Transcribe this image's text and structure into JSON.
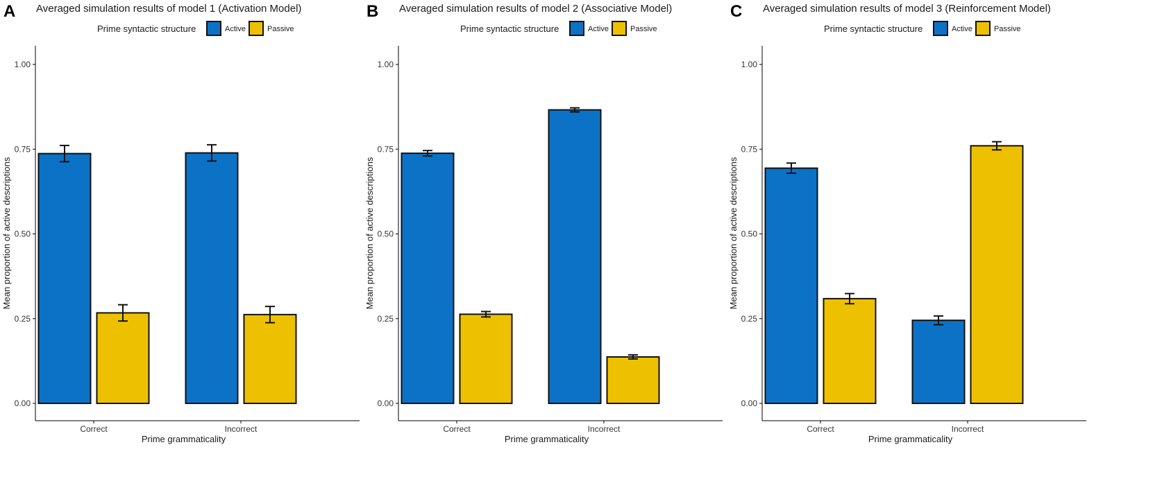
{
  "figure": {
    "width": 1687,
    "height": 694
  },
  "colors": {
    "Active": "#0c72c6",
    "Passive": "#eec100",
    "outline": "#111111",
    "axis": "#000000",
    "tick_text": "#333333"
  },
  "chart_data": [
    {
      "panel": "A",
      "type": "bar",
      "title": "Averaged simulation results of model 1 (Activation Model)",
      "legend": {
        "title": "Prime syntactic structure",
        "entries": [
          "Active",
          "Passive"
        ],
        "position": "top"
      },
      "xlabel": "Prime grammaticality",
      "ylabel": "Mean proportion of active descriptions",
      "categories": [
        "Correct",
        "Incorrect"
      ],
      "ylim": [
        -0.05,
        1.05
      ],
      "yticks": [
        0.0,
        0.25,
        0.5,
        0.75,
        1.0
      ],
      "ytick_labels": [
        "0.00",
        "0.25",
        "0.50",
        "0.75",
        "1.00"
      ],
      "series": [
        {
          "name": "Active",
          "values": [
            0.737,
            0.739
          ],
          "error": [
            0.024,
            0.024
          ]
        },
        {
          "name": "Passive",
          "values": [
            0.267,
            0.262
          ],
          "error": [
            0.024,
            0.024
          ]
        }
      ]
    },
    {
      "panel": "B",
      "type": "bar",
      "title": "Averaged simulation results of model 2 (Associative Model)",
      "legend": {
        "title": "Prime syntactic structure",
        "entries": [
          "Active",
          "Passive"
        ],
        "position": "top"
      },
      "xlabel": "Prime grammaticality",
      "ylabel": "Mean proportion of active descriptions",
      "categories": [
        "Correct",
        "Incorrect"
      ],
      "ylim": [
        -0.05,
        1.05
      ],
      "yticks": [
        0.0,
        0.25,
        0.5,
        0.75,
        1.0
      ],
      "ytick_labels": [
        "0.00",
        "0.25",
        "0.50",
        "0.75",
        "1.00"
      ],
      "series": [
        {
          "name": "Active",
          "values": [
            0.738,
            0.866
          ],
          "error": [
            0.008,
            0.006
          ]
        },
        {
          "name": "Passive",
          "values": [
            0.263,
            0.137
          ],
          "error": [
            0.008,
            0.006
          ]
        }
      ]
    },
    {
      "panel": "C",
      "type": "bar",
      "title": "Averaged simulation results of model 3 (Reinforcement Model)",
      "legend": {
        "title": "Prime syntactic structure",
        "entries": [
          "Active",
          "Passive"
        ],
        "position": "top"
      },
      "xlabel": "Prime grammaticality",
      "ylabel": "Mean proportion of active descriptions",
      "categories": [
        "Correct",
        "Incorrect"
      ],
      "ylim": [
        -0.05,
        1.05
      ],
      "yticks": [
        0.0,
        0.25,
        0.5,
        0.75,
        1.0
      ],
      "ytick_labels": [
        "0.00",
        "0.25",
        "0.50",
        "0.75",
        "1.00"
      ],
      "series": [
        {
          "name": "Active",
          "values": [
            0.694,
            0.245
          ],
          "error": [
            0.015,
            0.013
          ]
        },
        {
          "name": "Passive",
          "values": [
            0.309,
            0.76
          ],
          "error": [
            0.015,
            0.012
          ]
        }
      ]
    }
  ]
}
